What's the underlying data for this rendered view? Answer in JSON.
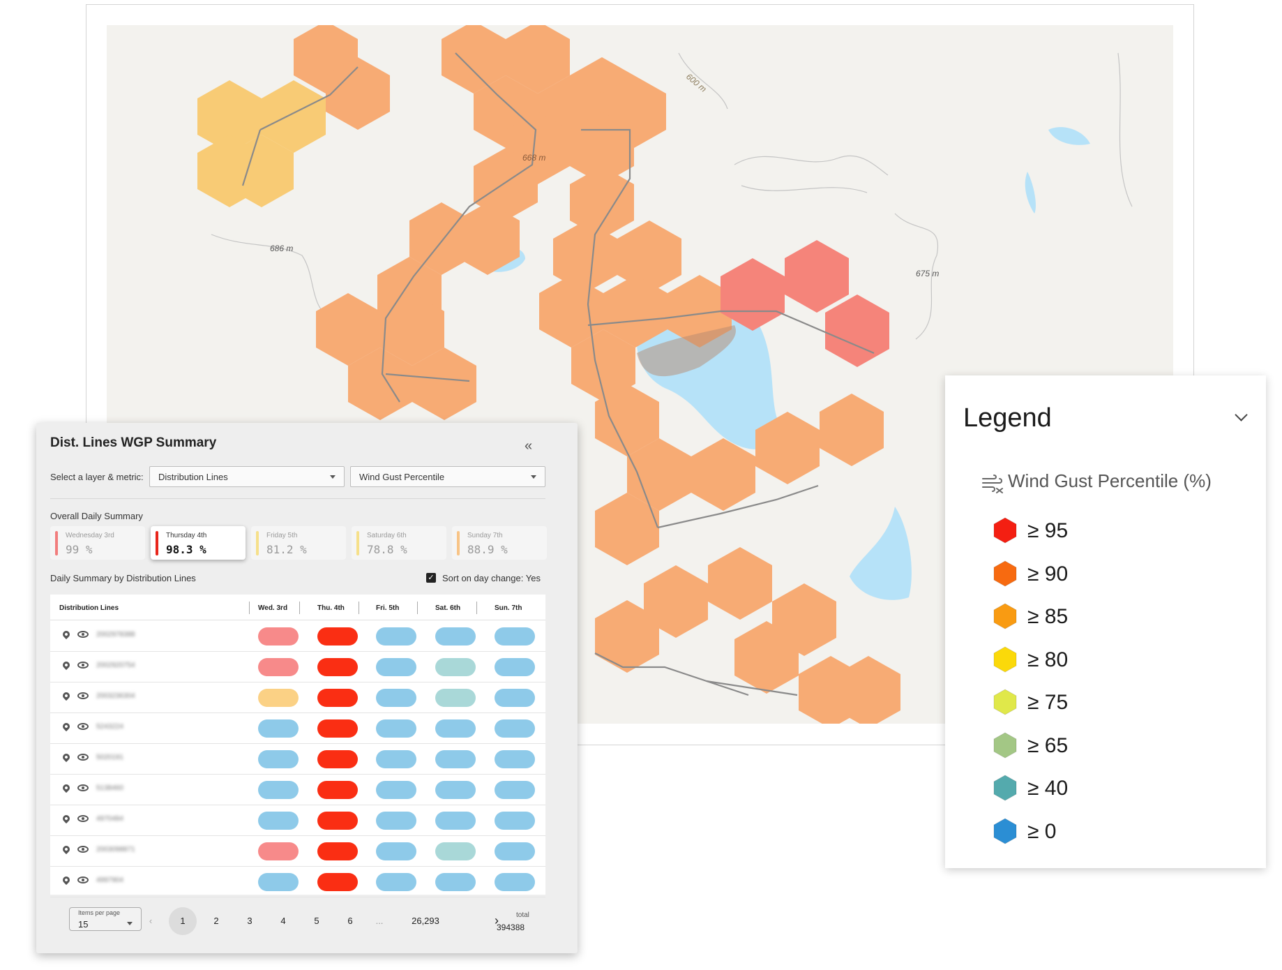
{
  "map": {
    "elevation_labels": [
      "600 m",
      "668 m",
      "686 m",
      "675 m"
    ],
    "colors": {
      "background": "#f3f2ee",
      "water": "#b6e2f8",
      "hex_85": "#f7ab74",
      "hex_80": "#f8cb75",
      "hex_95": "#f5847a",
      "line": "#8a8a8a"
    }
  },
  "panel": {
    "title": "Dist. Lines WGP Summary",
    "collapse_icon": "double-chevron-left-icon",
    "select_label": "Select a layer & metric:",
    "layer_select": "Distribution Lines",
    "metric_select": "Wind Gust Percentile",
    "overall_label": "Overall Daily Summary",
    "days": [
      {
        "name": "Wednesday 3rd",
        "value": "99 %",
        "color": "#f27d7d",
        "active": false
      },
      {
        "name": "Thursday 4th",
        "value": "98.3 %",
        "color": "#e8261b",
        "active": true
      },
      {
        "name": "Friday 5th",
        "value": "81.2 %",
        "color": "#f6e08a",
        "active": false
      },
      {
        "name": "Saturday 6th",
        "value": "78.8 %",
        "color": "#f6e08a",
        "active": false
      },
      {
        "name": "Sunday 7th",
        "value": "88.9 %",
        "color": "#f8c486",
        "active": false
      }
    ],
    "daily_by_label": "Daily Summary by Distribution Lines",
    "sort_label": "Sort on day change: Yes",
    "table": {
      "headers": [
        "Distribution Lines",
        "Wed. 3rd",
        "Thu. 4th",
        "Fri. 5th",
        "Sat. 6th",
        "Sun. 7th"
      ],
      "rows": [
        {
          "id": "2002978388",
          "cells": [
            "#f78a8a",
            "#fa2e13",
            "#8ecae9",
            "#8ecae9",
            "#8ecae9"
          ]
        },
        {
          "id": "2002920754",
          "cells": [
            "#f78a8a",
            "#fa2e13",
            "#8ecae9",
            "#a9d8d8",
            "#8ecae9"
          ]
        },
        {
          "id": "2003236304",
          "cells": [
            "#fbd185",
            "#fa2e13",
            "#8ecae9",
            "#a9d8d8",
            "#8ecae9"
          ]
        },
        {
          "id": "5243224",
          "cells": [
            "#8ecae9",
            "#fa2e13",
            "#8ecae9",
            "#8ecae9",
            "#8ecae9"
          ]
        },
        {
          "id": "5020191",
          "cells": [
            "#8ecae9",
            "#fa2e13",
            "#8ecae9",
            "#8ecae9",
            "#8ecae9"
          ]
        },
        {
          "id": "5138460",
          "cells": [
            "#8ecae9",
            "#fa2e13",
            "#8ecae9",
            "#8ecae9",
            "#8ecae9"
          ]
        },
        {
          "id": "4970484",
          "cells": [
            "#8ecae9",
            "#fa2e13",
            "#8ecae9",
            "#8ecae9",
            "#8ecae9"
          ]
        },
        {
          "id": "2003098871",
          "cells": [
            "#f78a8a",
            "#fa2e13",
            "#8ecae9",
            "#a9d8d8",
            "#8ecae9"
          ]
        },
        {
          "id": "4997904",
          "cells": [
            "#8ecae9",
            "#fa2e13",
            "#8ecae9",
            "#8ecae9",
            "#8ecae9"
          ]
        }
      ]
    },
    "pagination": {
      "items_per_page_label": "Items per page",
      "items_per_page": "15",
      "prev_icon": "chevron-left-icon",
      "next_icon": "chevron-right-icon",
      "pages": [
        "1",
        "2",
        "3",
        "4",
        "5",
        "6",
        "...",
        "26,293"
      ],
      "current_page": "1",
      "total_label": "total",
      "total_value": "394388"
    }
  },
  "legend": {
    "title": "Legend",
    "chevron_icon": "chevron-down-icon",
    "metric_icon": "wind-icon",
    "metric_title": "Wind Gust Percentile (%)",
    "items": [
      {
        "label": "≥ 95",
        "color": "#f41f12"
      },
      {
        "label": "≥ 90",
        "color": "#f76a10"
      },
      {
        "label": "≥ 85",
        "color": "#f99b12"
      },
      {
        "label": "≥ 80",
        "color": "#fbd90a"
      },
      {
        "label": "≥ 75",
        "color": "#e0e84a"
      },
      {
        "label": "≥ 65",
        "color": "#a3c785"
      },
      {
        "label": "≥ 40",
        "color": "#54aaad"
      },
      {
        "label": "≥ 0",
        "color": "#2b8ed4"
      }
    ]
  }
}
